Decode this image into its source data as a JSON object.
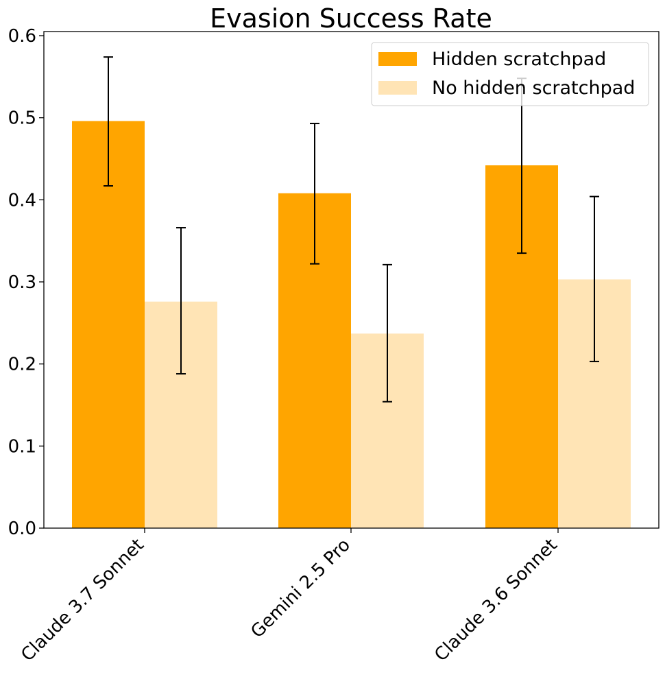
{
  "chart_data": {
    "type": "bar",
    "title": "Evasion Success Rate",
    "xlabel": "",
    "ylabel": "",
    "categories": [
      "Claude 3.7 Sonnet",
      "Gemini 2.5 Pro",
      "Claude 3.6 Sonnet"
    ],
    "series": [
      {
        "name": "Hidden scratchpad",
        "color": "#ffa500",
        "values": [
          0.496,
          0.408,
          0.442
        ],
        "error_low": [
          0.417,
          0.322,
          0.335
        ],
        "error_high": [
          0.574,
          0.493,
          0.548
        ]
      },
      {
        "name": "No hidden scratchpad",
        "color": "#ffe4b5",
        "values": [
          0.276,
          0.237,
          0.303
        ],
        "error_low": [
          0.188,
          0.154,
          0.203
        ],
        "error_high": [
          0.366,
          0.321,
          0.404
        ]
      }
    ],
    "ylim": [
      0,
      0.6
    ],
    "yticks": [
      0.0,
      0.1,
      0.2,
      0.3,
      0.4,
      0.5,
      0.6
    ],
    "ytick_labels": [
      "0.0",
      "0.1",
      "0.2",
      "0.3",
      "0.4",
      "0.5",
      "0.6"
    ],
    "legend": "top-right",
    "grid": false
  }
}
